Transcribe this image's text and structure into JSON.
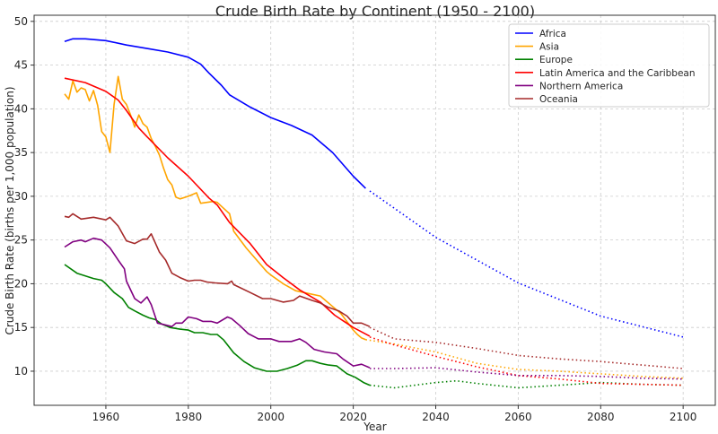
{
  "chart_data": {
    "type": "line",
    "title": "Crude Birth Rate by Continent (1950 - 2100)",
    "xlabel": "Year",
    "ylabel": "Crude Birth Rate (births per 1,000 population)",
    "xlim": [
      1942.6,
      2107.8
    ],
    "ylim": [
      6.1,
      50.7
    ],
    "xticks": [
      1960,
      1980,
      2000,
      2020,
      2040,
      2060,
      2080,
      2100
    ],
    "yticks": [
      10,
      15,
      20,
      25,
      30,
      35,
      40,
      45,
      50
    ],
    "grid": true,
    "legend_position": "top-right",
    "historical_style": "solid",
    "projection_style": "dotted",
    "series": [
      {
        "name": "Africa",
        "color": "#0000ff",
        "historical": {
          "x": [
            1950,
            1952,
            1955,
            1960,
            1965,
            1970,
            1975,
            1980,
            1983,
            1985,
            1988,
            1990,
            1995,
            2000,
            2005,
            2010,
            2015,
            2020,
            2023
          ],
          "y": [
            47.7,
            48.0,
            48.0,
            47.8,
            47.3,
            46.9,
            46.5,
            45.9,
            45.1,
            44.1,
            42.7,
            41.6,
            40.2,
            39.0,
            38.1,
            37.0,
            35.0,
            32.3,
            30.9
          ]
        },
        "projection": {
          "x": [
            2024,
            2040,
            2060,
            2080,
            2100
          ],
          "y": [
            30.6,
            25.3,
            20.1,
            16.3,
            13.9
          ]
        }
      },
      {
        "name": "Asia",
        "color": "#ffa500",
        "historical": {
          "x": [
            1950,
            1951,
            1952,
            1953,
            1954,
            1955,
            1956,
            1957,
            1958,
            1959,
            1960,
            1961,
            1962,
            1963,
            1964,
            1965,
            1966,
            1967,
            1968,
            1969,
            1970,
            1971,
            1972,
            1973,
            1974,
            1975,
            1976,
            1977,
            1978,
            1980,
            1982,
            1983,
            1986,
            1987,
            1990,
            1991,
            1994,
            1999,
            2000,
            2003,
            2006,
            2009,
            2012,
            2015,
            2017,
            2020,
            2021,
            2022,
            2023
          ],
          "y": [
            41.7,
            41.1,
            43.2,
            41.9,
            42.4,
            42.2,
            40.9,
            42.1,
            40.4,
            37.4,
            36.8,
            35.0,
            40.5,
            43.7,
            41.1,
            40.5,
            39.3,
            37.9,
            39.3,
            38.3,
            37.9,
            36.6,
            35.7,
            34.7,
            33.2,
            31.9,
            31.3,
            29.9,
            29.7,
            30.0,
            30.4,
            29.2,
            29.4,
            29.3,
            28.0,
            26.0,
            24.1,
            21.4,
            21.0,
            20.0,
            19.2,
            18.9,
            18.6,
            17.4,
            16.6,
            14.7,
            14.2,
            13.8,
            13.6
          ]
        },
        "projection": {
          "x": [
            2023,
            2030,
            2040,
            2050,
            2060,
            2070,
            2080,
            2090,
            2100
          ],
          "y": [
            13.6,
            13.1,
            12.2,
            10.9,
            10.2,
            10.0,
            9.7,
            9.4,
            9.2
          ]
        }
      },
      {
        "name": "Europe",
        "color": "#008000",
        "historical": {
          "x": [
            1950,
            1953,
            1957,
            1959,
            1960,
            1962,
            1964,
            1965.5,
            1967,
            1969,
            1970.5,
            1972,
            1973.5,
            1975.5,
            1978,
            1980,
            1981.5,
            1983.5,
            1985.5,
            1987,
            1988.5,
            1991,
            1993.5,
            1996,
            1999,
            2001.5,
            2004,
            2006.5,
            2008.5,
            2010,
            2012,
            2014,
            2016,
            2018.5,
            2020.5,
            2022.5,
            2024
          ],
          "y": [
            22.2,
            21.2,
            20.6,
            20.4,
            20.0,
            19.0,
            18.3,
            17.3,
            16.9,
            16.4,
            16.1,
            15.9,
            15.4,
            15.0,
            14.8,
            14.7,
            14.4,
            14.4,
            14.2,
            14.2,
            13.6,
            12.1,
            11.1,
            10.4,
            10.0,
            10.0,
            10.3,
            10.7,
            11.2,
            11.2,
            10.9,
            10.7,
            10.6,
            9.7,
            9.3,
            8.7,
            8.4
          ]
        },
        "projection": {
          "x": [
            2024,
            2030,
            2040,
            2045,
            2050,
            2060,
            2070,
            2080,
            2090,
            2100
          ],
          "y": [
            8.4,
            8.1,
            8.7,
            8.9,
            8.6,
            8.1,
            8.4,
            8.7,
            8.5,
            8.4
          ]
        }
      },
      {
        "name": "Latin America and the Caribbean",
        "color": "#ff0000",
        "historical": {
          "x": [
            1950,
            1955,
            1960,
            1963,
            1965,
            1968,
            1970,
            1975,
            1980,
            1985,
            1987,
            1990,
            1995,
            1999,
            2003,
            2007,
            2012,
            2015.5,
            2020,
            2024
          ],
          "y": [
            43.5,
            43.0,
            42.0,
            41.0,
            39.8,
            37.8,
            36.8,
            34.4,
            32.3,
            29.8,
            29.0,
            27.0,
            24.6,
            22.2,
            20.7,
            19.3,
            17.9,
            16.4,
            15.0,
            14.0
          ]
        },
        "projection": {
          "x": [
            2024,
            2030,
            2040,
            2050,
            2060,
            2070,
            2080,
            2090,
            2100
          ],
          "y": [
            13.9,
            13.0,
            11.7,
            10.5,
            9.5,
            9.1,
            8.6,
            8.5,
            8.4
          ]
        }
      },
      {
        "name": "Northern America",
        "color": "#800080",
        "historical": {
          "x": [
            1950,
            1952,
            1954,
            1955,
            1957,
            1959,
            1961,
            1963,
            1964.5,
            1965,
            1967,
            1968.5,
            1970,
            1971,
            1972.5,
            1973.5,
            1976,
            1977,
            1978.5,
            1980,
            1982,
            1983.5,
            1985.5,
            1987,
            1989.5,
            1990.5,
            1992.5,
            1994.5,
            1997,
            2000,
            2002,
            2005,
            2007,
            2008.5,
            2010.5,
            2013,
            2016,
            2017.5,
            2020,
            2022,
            2024
          ],
          "y": [
            24.2,
            24.8,
            25.0,
            24.8,
            25.2,
            25.0,
            24.1,
            22.7,
            21.7,
            20.3,
            18.3,
            17.8,
            18.5,
            17.6,
            15.5,
            15.4,
            15.1,
            15.5,
            15.5,
            16.2,
            16.0,
            15.7,
            15.7,
            15.5,
            16.2,
            16.0,
            15.2,
            14.3,
            13.7,
            13.7,
            13.4,
            13.4,
            13.7,
            13.3,
            12.5,
            12.2,
            12.0,
            11.4,
            10.6,
            10.8,
            10.4
          ]
        },
        "projection": {
          "x": [
            2024,
            2030,
            2040,
            2050,
            2060,
            2070,
            2080,
            2090,
            2100
          ],
          "y": [
            10.3,
            10.3,
            10.4,
            9.9,
            9.5,
            9.5,
            9.4,
            9.2,
            9.1
          ]
        }
      },
      {
        "name": "Oceania",
        "color": "#a52a2a",
        "historical": {
          "x": [
            1950,
            1951,
            1952,
            1954,
            1957,
            1960,
            1961,
            1963,
            1965,
            1967,
            1969,
            1970,
            1971,
            1973,
            1974.5,
            1976,
            1978,
            1980,
            1981.5,
            1983,
            1984.5,
            1986.5,
            1989.5,
            1990.5,
            1991,
            1995,
            1998,
            2000,
            2003,
            2005.5,
            2007,
            2010,
            2012,
            2014,
            2016.5,
            2018.5,
            2020,
            2022,
            2024
          ],
          "y": [
            27.7,
            27.6,
            28.0,
            27.4,
            27.6,
            27.3,
            27.6,
            26.6,
            24.9,
            24.6,
            25.1,
            25.1,
            25.7,
            23.6,
            22.7,
            21.2,
            20.7,
            20.3,
            20.4,
            20.4,
            20.2,
            20.1,
            20.0,
            20.3,
            19.9,
            19.0,
            18.3,
            18.3,
            17.9,
            18.1,
            18.6,
            18.1,
            17.8,
            17.3,
            16.9,
            16.3,
            15.5,
            15.5,
            15.1
          ]
        },
        "projection": {
          "x": [
            2024,
            2030,
            2040,
            2050,
            2060,
            2070,
            2080,
            2090,
            2100
          ],
          "y": [
            15.0,
            13.7,
            13.3,
            12.6,
            11.8,
            11.4,
            11.1,
            10.7,
            10.3
          ]
        }
      }
    ]
  }
}
